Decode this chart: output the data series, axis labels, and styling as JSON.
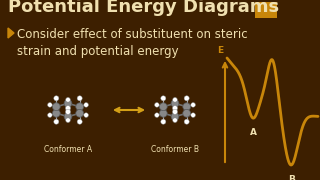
{
  "bg_color": "#3d1f00",
  "title_text": "Potential Energy Diagrams",
  "title_color": "#f0e0b0",
  "title_fontsize": 13,
  "title_bg_color": "#c8860a",
  "bullet_text": "Consider effect of substituent on steric\nstrain and potential energy",
  "bullet_color": "#f0e0b0",
  "bullet_fontsize": 8.5,
  "bullet_arrow_color": "#c8860a",
  "conformer_a_label": "Conformer A",
  "conformer_b_label": "Conformer B",
  "label_color": "#f0e0b0",
  "label_fontsize": 5.5,
  "double_arrow_color": "#d4a017",
  "curve_color": "#c8860a",
  "axis_color": "#c8860a",
  "e_label": "E",
  "a_label": "A",
  "b_label": "B",
  "axis_label_fontsize": 6.5
}
